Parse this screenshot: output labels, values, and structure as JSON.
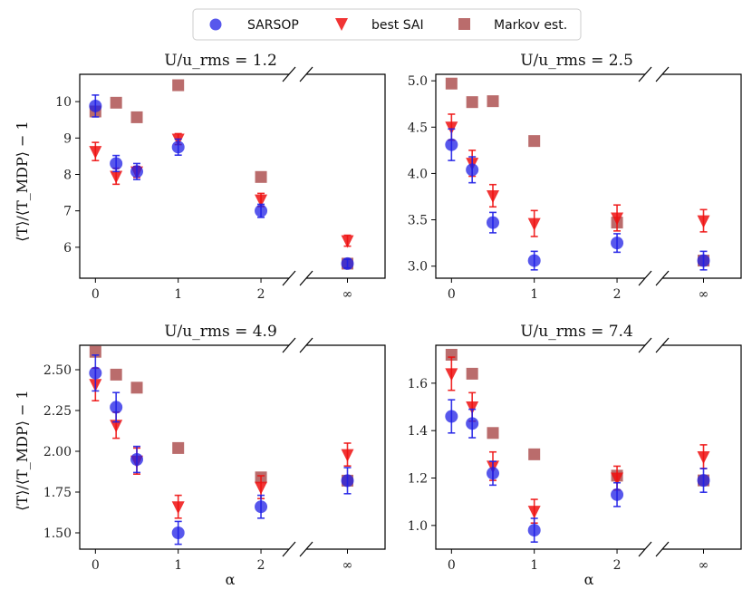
{
  "legend": {
    "entries": [
      {
        "name": "SARSOP",
        "marker": "circle",
        "color": "#1f1fe6"
      },
      {
        "name": "best SAI",
        "marker": "triangle-down",
        "color": "#ee1111"
      },
      {
        "name": "Markov est.",
        "marker": "square",
        "color": "#a33b3b"
      }
    ]
  },
  "shared": {
    "ylabel": "⟨T⟩/⟨T_MDP⟩ − 1",
    "xlabel": "α",
    "x_tick_labels": [
      "0",
      "1",
      "2",
      "∞"
    ]
  },
  "chart_data": [
    {
      "type": "scatter",
      "title": "U/u_rms = 1.2",
      "ylim": [
        5.15,
        10.75
      ],
      "y_ticks": [
        6,
        7,
        8,
        9,
        10
      ],
      "y_tick_labels": [
        "6",
        "7",
        "8",
        "9",
        "10"
      ],
      "x": [
        0,
        0.25,
        0.5,
        1,
        2,
        "inf"
      ],
      "series": [
        {
          "name": "SARSOP",
          "values": [
            9.88,
            8.3,
            8.08,
            8.75,
            7.0,
            5.55
          ],
          "err": [
            0.3,
            0.22,
            0.22,
            0.22,
            0.18,
            0.12
          ]
        },
        {
          "name": "best SAI",
          "values": [
            8.63,
            7.95,
            8.07,
            8.97,
            7.3,
            6.18
          ],
          "err": [
            0.25,
            0.22,
            0.15,
            0.15,
            0.18,
            0.15
          ]
        },
        {
          "name": "Markov est.",
          "values": [
            9.73,
            9.97,
            9.57,
            10.45,
            7.93,
            5.55
          ],
          "err": null
        }
      ]
    },
    {
      "type": "scatter",
      "title": "U/u_rms = 2.5",
      "ylim": [
        2.87,
        5.07
      ],
      "y_ticks": [
        3.0,
        3.5,
        4.0,
        4.5,
        5.0
      ],
      "y_tick_labels": [
        "3.0",
        "3.5",
        "4.0",
        "4.5",
        "5.0"
      ],
      "x": [
        0,
        0.25,
        0.5,
        1,
        2,
        "inf"
      ],
      "series": [
        {
          "name": "SARSOP",
          "values": [
            4.31,
            4.04,
            3.47,
            3.06,
            3.25,
            3.06
          ],
          "err": [
            0.17,
            0.14,
            0.11,
            0.1,
            0.1,
            0.1
          ]
        },
        {
          "name": "best SAI",
          "values": [
            4.5,
            4.11,
            3.76,
            3.46,
            3.52,
            3.49
          ],
          "err": [
            0.14,
            0.14,
            0.12,
            0.14,
            0.14,
            0.12
          ]
        },
        {
          "name": "Markov est.",
          "values": [
            4.97,
            4.77,
            4.78,
            4.35,
            3.47,
            3.06
          ],
          "err": null
        }
      ]
    },
    {
      "type": "scatter",
      "title": "U/u_rms = 4.9",
      "ylim": [
        1.4,
        2.65
      ],
      "y_ticks": [
        1.5,
        1.75,
        2.0,
        2.25,
        2.5
      ],
      "y_tick_labels": [
        "1.50",
        "1.75",
        "2.00",
        "2.25",
        "2.50"
      ],
      "x": [
        0,
        0.25,
        0.5,
        1,
        2,
        "inf"
      ],
      "series": [
        {
          "name": "SARSOP",
          "values": [
            2.48,
            2.27,
            1.95,
            1.5,
            1.66,
            1.82
          ],
          "err": [
            0.11,
            0.09,
            0.08,
            0.07,
            0.07,
            0.08
          ]
        },
        {
          "name": "best SAI",
          "values": [
            2.41,
            2.16,
            1.94,
            1.66,
            1.78,
            1.98
          ],
          "err": [
            0.1,
            0.08,
            0.08,
            0.07,
            0.07,
            0.07
          ]
        },
        {
          "name": "Markov est.",
          "values": [
            2.61,
            2.47,
            2.39,
            2.02,
            1.84,
            1.82
          ],
          "err": null
        }
      ]
    },
    {
      "type": "scatter",
      "title": "U/u_rms = 7.4",
      "ylim": [
        0.9,
        1.76
      ],
      "y_ticks": [
        1.0,
        1.2,
        1.4,
        1.6
      ],
      "y_tick_labels": [
        "1.0",
        "1.2",
        "1.4",
        "1.6"
      ],
      "x": [
        0,
        0.25,
        0.5,
        1,
        2,
        "inf"
      ],
      "series": [
        {
          "name": "SARSOP",
          "values": [
            1.46,
            1.43,
            1.22,
            0.98,
            1.13,
            1.19
          ],
          "err": [
            0.07,
            0.06,
            0.05,
            0.05,
            0.05,
            0.05
          ]
        },
        {
          "name": "best SAI",
          "values": [
            1.64,
            1.5,
            1.25,
            1.06,
            1.2,
            1.29
          ],
          "err": [
            0.07,
            0.06,
            0.06,
            0.05,
            0.05,
            0.05
          ]
        },
        {
          "name": "Markov est.",
          "values": [
            1.72,
            1.64,
            1.39,
            1.3,
            1.21,
            1.19
          ],
          "err": null
        }
      ]
    }
  ]
}
